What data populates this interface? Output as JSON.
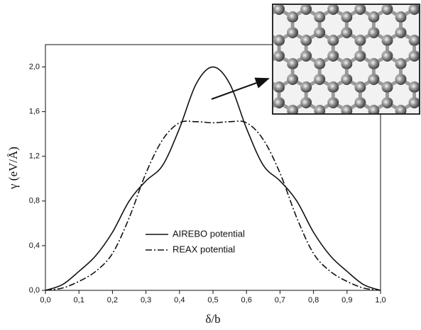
{
  "chart_data": {
    "type": "line",
    "x_label": "δ/b",
    "y_label": "γ (eV/Å)",
    "x": [
      0,
      0.05,
      0.1,
      0.15,
      0.2,
      0.25,
      0.3,
      0.35,
      0.4,
      0.45,
      0.5,
      0.55,
      0.6,
      0.65,
      0.7,
      0.75,
      0.8,
      0.85,
      0.9,
      0.95,
      1.0
    ],
    "series": [
      {
        "name": "AIREBO potential",
        "color": "#111111",
        "dash": "solid",
        "values": [
          0,
          0.05,
          0.17,
          0.31,
          0.52,
          0.8,
          0.98,
          1.12,
          1.45,
          1.85,
          2.0,
          1.85,
          1.45,
          1.12,
          0.98,
          0.8,
          0.52,
          0.31,
          0.17,
          0.05,
          0
        ]
      },
      {
        "name": "REAX potential",
        "color": "#111111",
        "dash": "dashdot",
        "values": [
          0,
          0.02,
          0.08,
          0.17,
          0.33,
          0.65,
          1.05,
          1.35,
          1.5,
          1.51,
          1.5,
          1.51,
          1.5,
          1.35,
          1.05,
          0.65,
          0.33,
          0.17,
          0.08,
          0.02,
          0
        ]
      }
    ],
    "xlim": [
      0,
      1.0
    ],
    "ylim": [
      0,
      2.2
    ],
    "xticks": [
      {
        "value": 0,
        "label": "0,0"
      },
      {
        "value": 0.1,
        "label": "0,1"
      },
      {
        "value": 0.2,
        "label": "0,2"
      },
      {
        "value": 0.3,
        "label": "0,3"
      },
      {
        "value": 0.4,
        "label": "0,4"
      },
      {
        "value": 0.5,
        "label": "0,5"
      },
      {
        "value": 0.6,
        "label": "0,6"
      },
      {
        "value": 0.7,
        "label": "0,7"
      },
      {
        "value": 0.8,
        "label": "0,8"
      },
      {
        "value": 0.9,
        "label": "0,9"
      },
      {
        "value": 1.0,
        "label": "1,0"
      }
    ],
    "yticks": [
      {
        "value": 0,
        "label": "0,0"
      },
      {
        "value": 0.4,
        "label": "0,4"
      },
      {
        "value": 0.8,
        "label": "0,8"
      },
      {
        "value": 1.2,
        "label": "1,2"
      },
      {
        "value": 1.6,
        "label": "1,6"
      },
      {
        "value": 2.0,
        "label": "2,0"
      }
    ],
    "grid": false,
    "legend": "lower center"
  }
}
